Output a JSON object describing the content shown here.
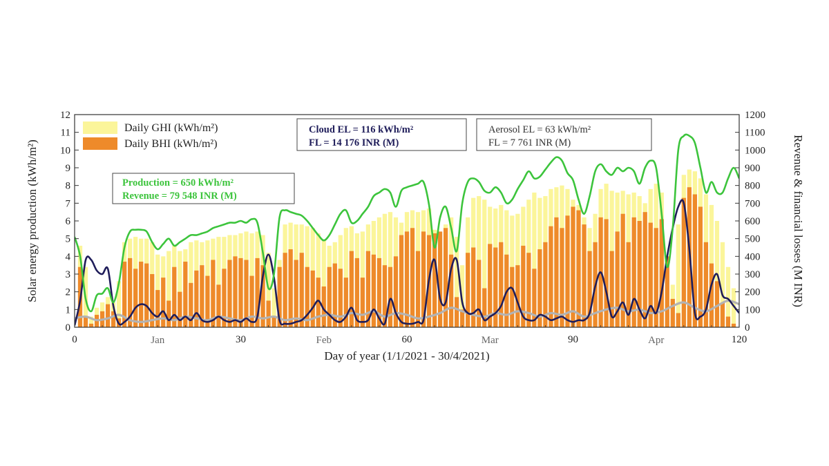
{
  "chart_data": {
    "type": "bar",
    "xlabel": "Day of year (1/1/2021 - 30/4/2021)",
    "ylabel": "Solar energy production (kWh/m²)",
    "y2label": "Revenue & financial losses (M INR)",
    "xlim": [
      0,
      120
    ],
    "ylim": [
      0,
      12
    ],
    "y2lim": [
      0,
      1200
    ],
    "xticks": [
      0,
      30,
      60,
      90,
      120
    ],
    "yticks": [
      0,
      1,
      2,
      3,
      4,
      5,
      6,
      7,
      8,
      9,
      10,
      11,
      12
    ],
    "y2ticks": [
      0,
      100,
      200,
      300,
      400,
      500,
      600,
      700,
      800,
      900,
      1000,
      1100,
      1200
    ],
    "month_labels": [
      {
        "label": "Jan",
        "x": 15
      },
      {
        "label": "Feb",
        "x": 45
      },
      {
        "label": "Mar",
        "x": 75
      },
      {
        "label": "Apr",
        "x": 105
      }
    ],
    "legend": [
      {
        "name": "Daily GHI (kWh/m²)",
        "color": "#fbf59a"
      },
      {
        "name": "Daily BHI (kWh/m²)",
        "color": "#ee8a2a"
      }
    ],
    "annotations": [
      {
        "lines": [
          "Cloud EL = 116 kWh/m²",
          "FL = 14 176 INR (M)"
        ],
        "color": "#1f1d5a",
        "bold": true
      },
      {
        "lines": [
          "Aerosol EL = 63 kWh/m²",
          "FL = 7 761 INR (M)"
        ],
        "color": "#333333",
        "bold": false
      },
      {
        "lines": [
          "Production = 650 kWh/m²",
          "Revenue = 79 548 INR (M)"
        ],
        "color": "#3cc43c",
        "bold": true
      }
    ],
    "series": [
      {
        "name": "Daily GHI (kWh/m²)",
        "axis": "left",
        "x": [
          1,
          2,
          3,
          4,
          5,
          6,
          7,
          8,
          9,
          10,
          11,
          12,
          13,
          14,
          15,
          16,
          17,
          18,
          19,
          20,
          21,
          22,
          23,
          24,
          25,
          26,
          27,
          28,
          29,
          30,
          31,
          32,
          33,
          34,
          35,
          36,
          37,
          38,
          39,
          40,
          41,
          42,
          43,
          44,
          45,
          46,
          47,
          48,
          49,
          50,
          51,
          52,
          53,
          54,
          55,
          56,
          57,
          58,
          59,
          60,
          61,
          62,
          63,
          64,
          65,
          66,
          67,
          68,
          69,
          70,
          71,
          72,
          73,
          74,
          75,
          76,
          77,
          78,
          79,
          80,
          81,
          82,
          83,
          84,
          85,
          86,
          87,
          88,
          89,
          90,
          91,
          92,
          93,
          94,
          95,
          96,
          97,
          98,
          99,
          100,
          101,
          102,
          103,
          104,
          105,
          106,
          107,
          108,
          109,
          110,
          111,
          112,
          113,
          114,
          115,
          116,
          117,
          118,
          119
        ],
        "values": [
          4.6,
          3.4,
          0.6,
          1.1,
          1.4,
          1.7,
          1.4,
          2.6,
          4.8,
          5.0,
          5.1,
          5.0,
          5.0,
          4.8,
          4.1,
          4.0,
          4.3,
          4.6,
          4.3,
          4.4,
          4.8,
          4.9,
          4.8,
          4.9,
          5.0,
          5.1,
          5.1,
          5.2,
          5.2,
          5.3,
          5.4,
          5.3,
          5.4,
          5.2,
          4.2,
          2.2,
          3.8,
          5.8,
          5.9,
          5.8,
          5.8,
          5.7,
          5.6,
          5.3,
          4.9,
          4.6,
          4.8,
          5.2,
          5.6,
          5.7,
          5.3,
          5.4,
          5.8,
          6.0,
          6.2,
          6.4,
          6.5,
          6.2,
          5.9,
          6.5,
          6.6,
          6.5,
          6.6,
          6.7,
          5.5,
          4.5,
          5.8,
          6.2,
          5.1,
          3.5,
          6.2,
          7.3,
          7.4,
          7.2,
          6.8,
          6.7,
          6.9,
          6.6,
          6.3,
          6.4,
          6.8,
          7.2,
          7.6,
          7.3,
          7.4,
          7.8,
          7.9,
          8.0,
          7.8,
          7.2,
          6.9,
          6.2,
          5.6,
          6.4,
          7.8,
          8.1,
          7.7,
          7.6,
          7.7,
          7.5,
          7.6,
          7.4,
          7.0,
          7.8,
          8.1,
          7.6,
          3.2,
          2.4,
          5.8,
          8.6,
          8.9,
          8.8,
          8.4,
          7.5,
          6.9,
          6.0,
          4.8,
          3.4,
          2.2
        ]
      },
      {
        "name": "Daily BHI (kWh/m²)",
        "axis": "left",
        "x": [
          1,
          2,
          3,
          4,
          5,
          6,
          7,
          8,
          9,
          10,
          11,
          12,
          13,
          14,
          15,
          16,
          17,
          18,
          19,
          20,
          21,
          22,
          23,
          24,
          25,
          26,
          27,
          28,
          29,
          30,
          31,
          32,
          33,
          34,
          35,
          36,
          37,
          38,
          39,
          40,
          41,
          42,
          43,
          44,
          45,
          46,
          47,
          48,
          49,
          50,
          51,
          52,
          53,
          54,
          55,
          56,
          57,
          58,
          59,
          60,
          61,
          62,
          63,
          64,
          65,
          66,
          67,
          68,
          69,
          70,
          71,
          72,
          73,
          74,
          75,
          76,
          77,
          78,
          79,
          80,
          81,
          82,
          83,
          84,
          85,
          86,
          87,
          88,
          89,
          90,
          91,
          92,
          93,
          94,
          95,
          96,
          97,
          98,
          99,
          100,
          101,
          102,
          103,
          104,
          105,
          106,
          107,
          108,
          109,
          110,
          111,
          112,
          113,
          114,
          115,
          116,
          117,
          118,
          119
        ],
        "values": [
          3.4,
          0.6,
          0.2,
          0.7,
          0.9,
          1.3,
          0.9,
          0.5,
          3.7,
          3.9,
          3.3,
          3.7,
          3.6,
          3.0,
          2.1,
          2.8,
          1.5,
          3.4,
          2.0,
          3.7,
          2.5,
          3.2,
          3.5,
          2.9,
          3.8,
          2.4,
          3.3,
          3.8,
          4.0,
          3.9,
          3.8,
          2.9,
          3.9,
          3.5,
          1.5,
          0.6,
          3.4,
          4.2,
          4.4,
          3.8,
          4.2,
          3.4,
          3.2,
          2.8,
          2.3,
          3.4,
          3.6,
          3.3,
          2.8,
          4.3,
          3.9,
          2.8,
          4.3,
          4.1,
          3.9,
          3.5,
          3.4,
          4.0,
          5.2,
          5.4,
          5.6,
          4.3,
          5.4,
          5.2,
          5.3,
          5.4,
          5.6,
          4.1,
          1.7,
          1.0,
          4.2,
          4.5,
          3.8,
          2.2,
          4.7,
          4.5,
          4.8,
          4.1,
          3.4,
          3.5,
          4.6,
          4.2,
          3.3,
          4.4,
          4.8,
          5.7,
          6.2,
          5.6,
          6.3,
          6.8,
          6.6,
          5.8,
          4.3,
          4.8,
          6.2,
          6.1,
          4.3,
          5.4,
          6.4,
          4.8,
          6.2,
          6.0,
          6.5,
          5.9,
          5.6,
          6.1,
          4.0,
          1.6,
          0.8,
          7.3,
          7.9,
          7.5,
          6.8,
          4.8,
          3.6,
          2.6,
          1.4,
          0.6,
          0.2
        ]
      },
      {
        "name": "Production",
        "axis": "right",
        "color": "#3cc43c",
        "x": [
          0,
          1,
          2,
          3,
          4,
          5,
          6,
          7,
          8,
          9,
          10,
          11,
          12,
          13,
          14,
          15,
          16,
          17,
          18,
          19,
          20,
          21,
          22,
          23,
          24,
          25,
          26,
          27,
          28,
          29,
          30,
          31,
          32,
          33,
          34,
          35,
          36,
          37,
          38,
          39,
          40,
          41,
          42,
          43,
          44,
          45,
          46,
          47,
          48,
          49,
          50,
          51,
          52,
          53,
          54,
          55,
          56,
          57,
          58,
          59,
          60,
          61,
          62,
          63,
          64,
          65,
          66,
          67,
          68,
          69,
          70,
          71,
          72,
          73,
          74,
          75,
          76,
          77,
          78,
          79,
          80,
          81,
          82,
          83,
          84,
          85,
          86,
          87,
          88,
          89,
          90,
          91,
          92,
          93,
          94,
          95,
          96,
          97,
          98,
          99,
          100,
          101,
          102,
          103,
          104,
          105,
          106,
          107,
          108,
          109,
          110,
          111,
          112,
          113,
          114,
          115,
          116,
          117,
          118,
          119,
          120
        ],
        "values": [
          510,
          400,
          160,
          90,
          180,
          190,
          220,
          140,
          250,
          450,
          540,
          550,
          550,
          540,
          480,
          440,
          470,
          500,
          460,
          480,
          500,
          520,
          520,
          530,
          540,
          560,
          570,
          580,
          590,
          590,
          600,
          590,
          610,
          590,
          420,
          220,
          300,
          620,
          660,
          650,
          640,
          630,
          600,
          560,
          520,
          490,
          520,
          580,
          640,
          660,
          590,
          600,
          640,
          680,
          740,
          760,
          780,
          760,
          680,
          770,
          790,
          800,
          810,
          820,
          690,
          450,
          620,
          680,
          560,
          430,
          700,
          820,
          840,
          820,
          770,
          760,
          790,
          760,
          700,
          720,
          780,
          830,
          880,
          840,
          850,
          890,
          930,
          960,
          940,
          870,
          830,
          720,
          640,
          740,
          880,
          920,
          880,
          860,
          900,
          880,
          900,
          880,
          810,
          900,
          940,
          900,
          640,
          340,
          560,
          1000,
          1080,
          1080,
          1040,
          900,
          760,
          820,
          760,
          760,
          840,
          900,
          840
        ]
      },
      {
        "name": "Cloud FL",
        "axis": "right",
        "color": "#1f1d5a",
        "x": [
          0,
          1,
          2,
          3,
          4,
          5,
          6,
          7,
          8,
          9,
          10,
          11,
          12,
          13,
          14,
          15,
          16,
          17,
          18,
          19,
          20,
          21,
          22,
          23,
          24,
          25,
          26,
          27,
          28,
          29,
          30,
          31,
          32,
          33,
          34,
          35,
          36,
          37,
          38,
          39,
          40,
          41,
          42,
          43,
          44,
          45,
          46,
          47,
          48,
          49,
          50,
          51,
          52,
          53,
          54,
          55,
          56,
          57,
          58,
          59,
          60,
          61,
          62,
          63,
          64,
          65,
          66,
          67,
          68,
          69,
          70,
          71,
          72,
          73,
          74,
          75,
          76,
          77,
          78,
          79,
          80,
          81,
          82,
          83,
          84,
          85,
          86,
          87,
          88,
          89,
          90,
          91,
          92,
          93,
          94,
          95,
          96,
          97,
          98,
          99,
          100,
          101,
          102,
          103,
          104,
          105,
          106,
          107,
          108,
          109,
          110,
          111,
          112,
          113,
          114,
          115,
          116,
          117,
          118,
          119,
          120
        ],
        "values": [
          10,
          150,
          380,
          380,
          320,
          300,
          330,
          120,
          20,
          30,
          60,
          110,
          130,
          120,
          80,
          60,
          90,
          40,
          70,
          40,
          60,
          40,
          80,
          40,
          30,
          40,
          60,
          40,
          30,
          40,
          30,
          50,
          30,
          60,
          290,
          410,
          280,
          40,
          20,
          20,
          30,
          40,
          70,
          110,
          150,
          100,
          70,
          40,
          30,
          60,
          110,
          40,
          30,
          40,
          100,
          50,
          20,
          160,
          80,
          30,
          20,
          20,
          30,
          40,
          270,
          380,
          160,
          140,
          330,
          380,
          140,
          80,
          80,
          100,
          40,
          60,
          80,
          120,
          200,
          220,
          140,
          60,
          40,
          40,
          70,
          60,
          40,
          50,
          60,
          40,
          30,
          40,
          40,
          80,
          230,
          310,
          200,
          60,
          90,
          140,
          70,
          160,
          100,
          50,
          120,
          80,
          200,
          400,
          560,
          680,
          700,
          440,
          80,
          60,
          100,
          240,
          300,
          180,
          160,
          120,
          80
        ]
      },
      {
        "name": "Aerosol FL",
        "axis": "right",
        "color": "#b3b3b3",
        "x": [
          0,
          2,
          4,
          6,
          8,
          10,
          12,
          14,
          16,
          18,
          20,
          22,
          24,
          26,
          28,
          30,
          32,
          34,
          36,
          38,
          40,
          42,
          44,
          46,
          48,
          50,
          52,
          54,
          56,
          58,
          60,
          62,
          64,
          66,
          68,
          70,
          72,
          74,
          76,
          78,
          80,
          82,
          84,
          86,
          88,
          90,
          92,
          94,
          96,
          98,
          100,
          102,
          104,
          106,
          108,
          110,
          112,
          114,
          116,
          118,
          120
        ],
        "values": [
          50,
          60,
          40,
          50,
          70,
          40,
          30,
          40,
          50,
          40,
          60,
          50,
          40,
          60,
          50,
          40,
          60,
          50,
          60,
          40,
          50,
          40,
          60,
          70,
          60,
          80,
          70,
          90,
          60,
          80,
          70,
          50,
          60,
          80,
          110,
          90,
          70,
          60,
          80,
          70,
          90,
          80,
          60,
          80,
          70,
          90,
          60,
          80,
          100,
          110,
          90,
          100,
          80,
          90,
          120,
          140,
          110,
          90,
          120,
          150,
          130
        ]
      }
    ]
  }
}
